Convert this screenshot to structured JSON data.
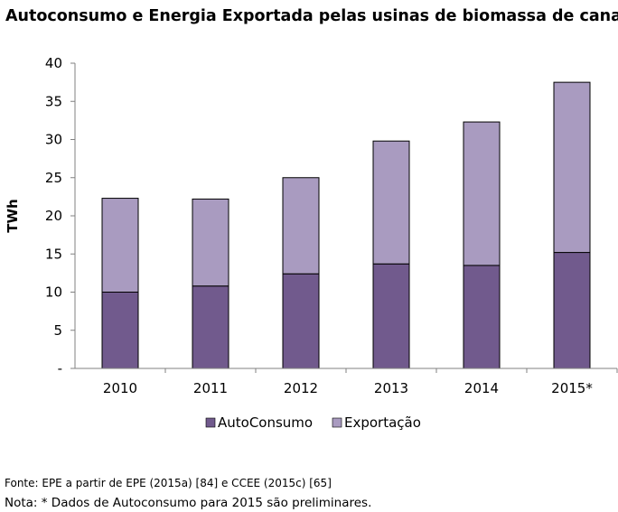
{
  "title": "Autoconsumo e Energia Exportada pelas usinas de biomassa de cana",
  "source": "Fonte: EPE a partir de EPE (2015a) [84] e CCEE (2015c) [65]",
  "note": "Nota: * Dados de Autoconsumo para 2015 são preliminares.",
  "chart_data": {
    "type": "bar",
    "stacked": true,
    "title": "Autoconsumo e Energia Exportada pelas usinas de biomassa de cana",
    "xlabel": "",
    "ylabel": "TWh",
    "ylim": [
      0,
      40
    ],
    "yticks": [
      0,
      5,
      10,
      15,
      20,
      25,
      30,
      35,
      40
    ],
    "ytick_labels": [
      "-",
      "5",
      "10",
      "15",
      "20",
      "25",
      "30",
      "35",
      "40"
    ],
    "categories": [
      "2010",
      "2011",
      "2012",
      "2013",
      "2014",
      "2015*"
    ],
    "series": [
      {
        "name": "AutoConsumo",
        "values": [
          10.0,
          10.8,
          12.4,
          13.7,
          13.5,
          15.2
        ],
        "color": "#715a8d"
      },
      {
        "name": "Exportação",
        "values": [
          12.3,
          11.4,
          12.6,
          16.1,
          18.8,
          22.3
        ],
        "color": "#a99bc0"
      }
    ],
    "grid": false,
    "legend_position": "bottom"
  }
}
